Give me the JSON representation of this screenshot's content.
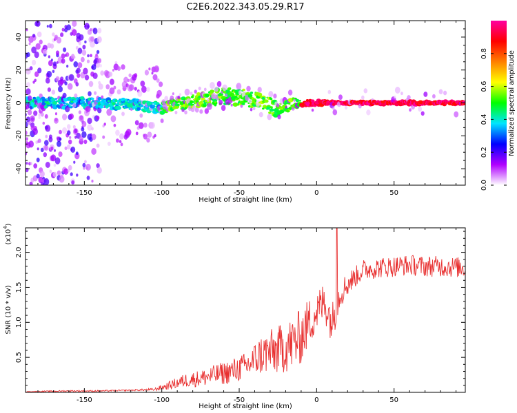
{
  "title": "C2E6.2022.343.05.29.R17",
  "chart_data": [
    {
      "type": "heatmap",
      "xlabel": "Height of straight line (km)",
      "ylabel": "Frequency (Hz)",
      "xlim": [
        -188,
        96
      ],
      "ylim": [
        -50,
        50
      ],
      "xticks": [
        -150,
        -100,
        -50,
        0,
        50
      ],
      "yticks": [
        -40,
        -20,
        0,
        20,
        40
      ],
      "colorbar": {
        "label": "Normalized spectral amplitude",
        "range": [
          0.0,
          1.0
        ],
        "ticks": [
          0.0,
          0.2,
          0.4,
          0.6,
          0.8
        ],
        "colors": [
          "#ffffff",
          "#b000ff",
          "#0000ff",
          "#00e5ff",
          "#00ff00",
          "#ffff00",
          "#ff8000",
          "#ff0000",
          "#ff00a0"
        ]
      },
      "center_line": [
        {
          "x": -188,
          "y": 0
        },
        {
          "x": -150,
          "y": 0
        },
        {
          "x": -120,
          "y": -1
        },
        {
          "x": -100,
          "y": -3
        },
        {
          "x": -85,
          "y": 0
        },
        {
          "x": -75,
          "y": 2
        },
        {
          "x": -60,
          "y": 4
        },
        {
          "x": -45,
          "y": 3
        },
        {
          "x": -35,
          "y": 0
        },
        {
          "x": -25,
          "y": -4
        },
        {
          "x": -15,
          "y": 0
        },
        {
          "x": 0,
          "y": 0
        },
        {
          "x": 96,
          "y": 0
        }
      ],
      "band_halfwidth_hz": [
        {
          "x": -188,
          "w": 3
        },
        {
          "x": -100,
          "w": 3
        },
        {
          "x": -60,
          "w": 5
        },
        {
          "x": -30,
          "w": 5
        },
        {
          "x": -10,
          "w": 2
        },
        {
          "x": 10,
          "w": 1
        },
        {
          "x": 96,
          "w": 1
        }
      ],
      "grid": false
    },
    {
      "type": "line",
      "xlabel": "Height of straight line (km)",
      "ylabel": "SNR (10 * v/v)",
      "yscale_label": "(x10",
      "yscale_exp": "4",
      "yscale_close": ")",
      "xlim": [
        -188,
        96
      ],
      "ylim": [
        0,
        2.35
      ],
      "xticks": [
        -150,
        -100,
        -50,
        0,
        50
      ],
      "yticks": [
        0.5,
        1.0,
        1.5,
        2.0
      ],
      "line_color": "#e83030",
      "grid": false,
      "series": [
        {
          "x": [
            -188,
            -160,
            -140,
            -120,
            -105,
            -95,
            -85,
            -75,
            -65,
            -55,
            -45,
            -35,
            -25,
            -15,
            -10,
            -5,
            0,
            5,
            10,
            15,
            20,
            25,
            30,
            40,
            50,
            60,
            70,
            80,
            96
          ],
          "y": [
            0.01,
            0.02,
            0.02,
            0.03,
            0.04,
            0.1,
            0.17,
            0.2,
            0.25,
            0.3,
            0.38,
            0.55,
            0.6,
            0.7,
            0.8,
            1.0,
            1.15,
            1.3,
            1.0,
            1.4,
            1.55,
            1.65,
            1.75,
            1.78,
            1.8,
            1.82,
            1.8,
            1.8,
            1.78
          ],
          "noise": [
            0.005,
            0.01,
            0.01,
            0.01,
            0.02,
            0.06,
            0.1,
            0.12,
            0.15,
            0.18,
            0.2,
            0.3,
            0.35,
            0.4,
            0.4,
            0.35,
            0.3,
            0.3,
            0.3,
            0.2,
            0.18,
            0.15,
            0.15,
            0.15,
            0.15,
            0.15,
            0.15,
            0.15,
            0.15
          ]
        }
      ]
    }
  ]
}
